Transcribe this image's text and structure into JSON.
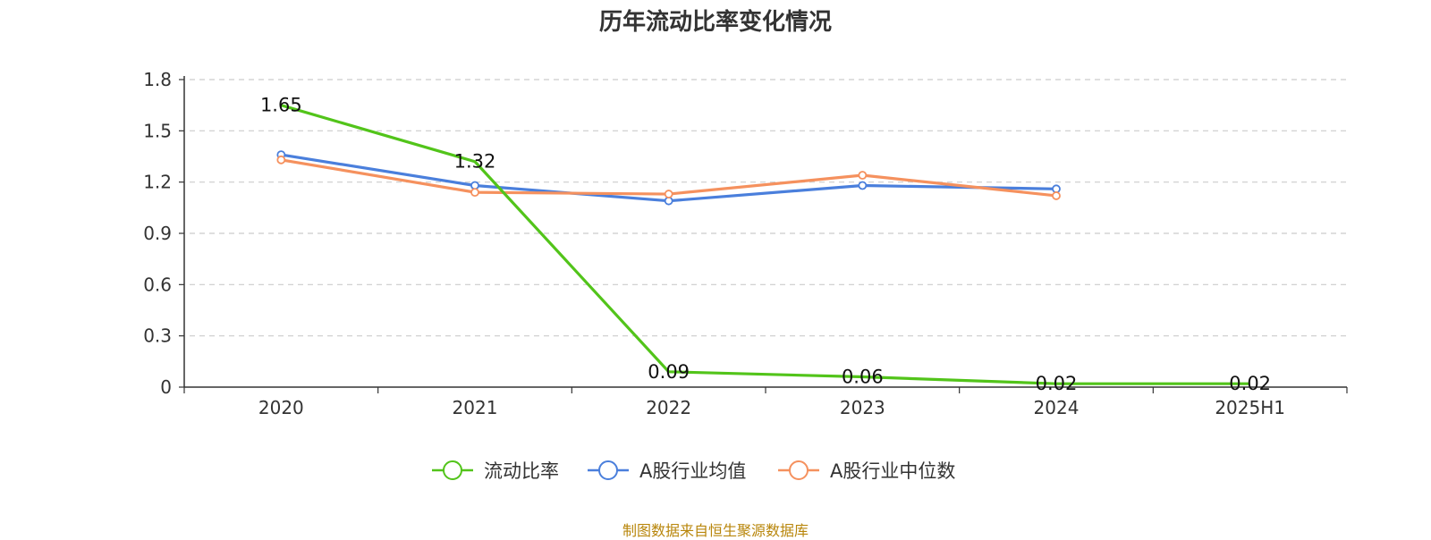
{
  "chart_data": {
    "type": "line",
    "title": "历年流动比率变化情况",
    "categories": [
      "2020",
      "2021",
      "2022",
      "2023",
      "2024",
      "2025H1"
    ],
    "ylim": [
      0,
      1.8
    ],
    "yticks": [
      0,
      0.3,
      0.6,
      0.9,
      1.2,
      1.5,
      1.8
    ],
    "grid": true,
    "legend_position": "bottom",
    "series": [
      {
        "name": "流动比率",
        "color": "#52c41a",
        "values": [
          1.65,
          1.32,
          0.09,
          0.06,
          0.02,
          0.02
        ],
        "labels": [
          "1.65",
          "1.32",
          "0.09",
          "0.06",
          "0.02",
          "0.02"
        ]
      },
      {
        "name": "A股行业均值",
        "color": "#4a7fdc",
        "values": [
          1.36,
          1.18,
          1.09,
          1.18,
          1.16,
          null
        ]
      },
      {
        "name": "A股行业中位数",
        "color": "#f5915e",
        "values": [
          1.33,
          1.14,
          1.13,
          1.24,
          1.12,
          null
        ]
      }
    ]
  },
  "footer": {
    "source": "制图数据来自恒生聚源数据库"
  }
}
